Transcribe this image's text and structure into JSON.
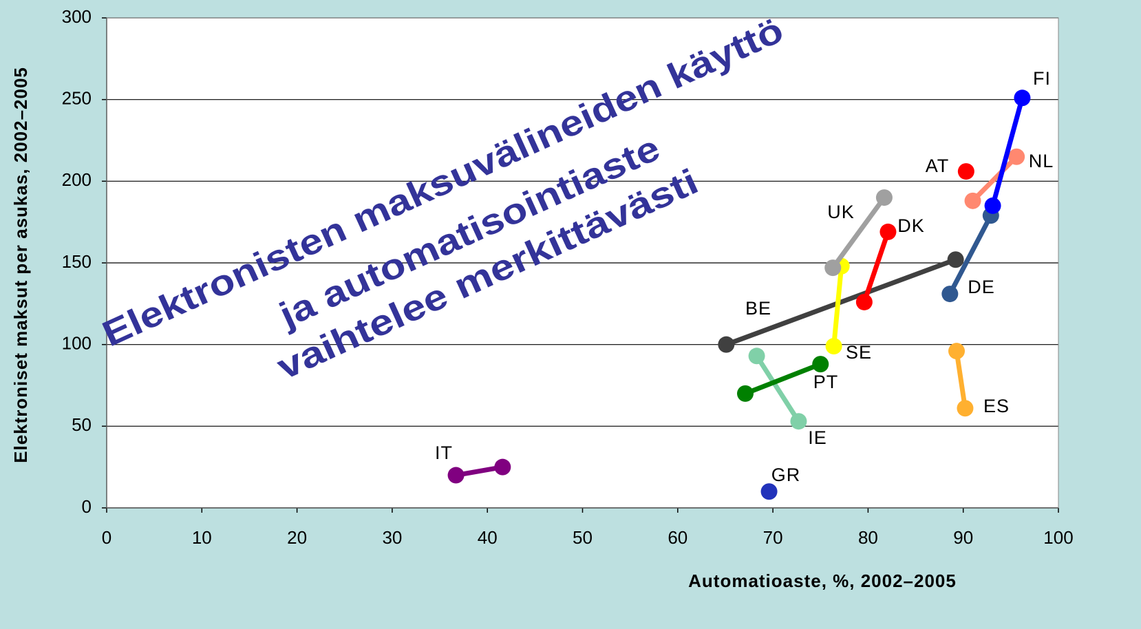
{
  "chart_data": {
    "type": "scatter",
    "xlabel": "Automatioaste, %, 2002–2005",
    "ylabel": "Elektroniset maksut per asukas, 2002–2005",
    "annotations": [
      "Elektronisten maksuvälineiden käyttö",
      "ja automatisointiaste",
      "vaihtelee merkittävästi"
    ],
    "xlim": [
      0,
      100
    ],
    "xticks": [
      0,
      10,
      20,
      30,
      40,
      50,
      60,
      70,
      80,
      90,
      100
    ],
    "ylim": [
      0,
      300
    ],
    "yticks": [
      0,
      50,
      100,
      150,
      200,
      250,
      300
    ],
    "grid": true,
    "series": [
      {
        "name": "IT",
        "color": "#800080",
        "x": [
          36.7,
          41.6
        ],
        "values": [
          20,
          25
        ]
      },
      {
        "name": "GR",
        "color": "#2233bb",
        "x": [
          69.6
        ],
        "values": [
          10
        ]
      },
      {
        "name": "IE",
        "color": "#80d0a8",
        "x": [
          68.3,
          72.7
        ],
        "values": [
          93,
          53
        ]
      },
      {
        "name": "PT",
        "color": "#008000",
        "x": [
          67.1,
          75.0
        ],
        "values": [
          70,
          88
        ]
      },
      {
        "name": "BE",
        "color": "#404040",
        "x": [
          65.1,
          89.2
        ],
        "values": [
          100,
          152
        ]
      },
      {
        "name": "SE",
        "color": "#ffff00",
        "x": [
          76.4,
          77.2
        ],
        "values": [
          99,
          148
        ]
      },
      {
        "name": "UK",
        "color": "#a0a0a0",
        "x": [
          76.3,
          81.7
        ],
        "values": [
          147,
          190
        ]
      },
      {
        "name": "DK",
        "color": "#ff0000",
        "x": [
          79.6,
          82.1
        ],
        "values": [
          126,
          169
        ]
      },
      {
        "name": "ES",
        "color": "#ffb030",
        "x": [
          89.3,
          90.2
        ],
        "values": [
          96,
          61
        ]
      },
      {
        "name": "DE",
        "color": "#305890",
        "x": [
          88.6,
          92.9
        ],
        "values": [
          131,
          179
        ]
      },
      {
        "name": "AT",
        "color": "#ff0000",
        "x": [
          90.3
        ],
        "values": [
          206
        ]
      },
      {
        "name": "NL",
        "color": "#ff8870",
        "x": [
          91.0,
          95.6
        ],
        "values": [
          188,
          215
        ]
      },
      {
        "name": "FI",
        "color": "#0000ff",
        "x": [
          93.1,
          96.2
        ],
        "values": [
          185,
          251
        ]
      }
    ]
  }
}
